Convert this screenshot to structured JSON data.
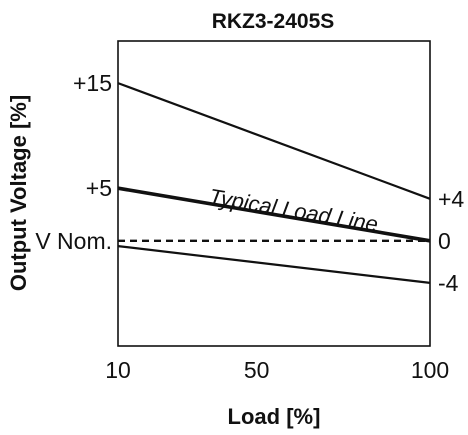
{
  "chart_data": {
    "type": "line",
    "title": "RKZ3-2405S",
    "xlabel": "Load [%]",
    "ylabel": "Output Voltage [%]",
    "xlim": [
      10,
      100
    ],
    "ylim": [
      -10,
      19
    ],
    "x_ticks": [
      {
        "value": 10,
        "label": "10"
      },
      {
        "value": 50,
        "label": "50"
      },
      {
        "value": 100,
        "label": "100"
      }
    ],
    "y_ticks_left": [
      {
        "value": 15,
        "label": "+15"
      },
      {
        "value": 5,
        "label": "+5"
      },
      {
        "value": 0,
        "label": "V Nom."
      }
    ],
    "y_ticks_right": [
      {
        "value": 4,
        "label": "+4"
      },
      {
        "value": 0,
        "label": "0"
      },
      {
        "value": -4,
        "label": "-4"
      }
    ],
    "grid": false,
    "series": [
      {
        "x": [
          10,
          100
        ],
        "y": [
          15,
          4
        ],
        "style": "solid"
      },
      {
        "name": "Typical Load Line",
        "x": [
          10,
          100
        ],
        "y": [
          5,
          0
        ],
        "style": "solid-bold"
      },
      {
        "x": [
          10,
          100
        ],
        "y": [
          -0.5,
          -4
        ],
        "style": "solid"
      },
      {
        "x": [
          10,
          100
        ],
        "y": [
          0,
          0
        ],
        "style": "dashed"
      }
    ],
    "annotations": [
      {
        "text": "Typical Load Line",
        "x": 36,
        "y": 3.55,
        "angle_follows_series": 1
      }
    ],
    "colors": {
      "line": "#111111",
      "background": "#ffffff"
    }
  }
}
